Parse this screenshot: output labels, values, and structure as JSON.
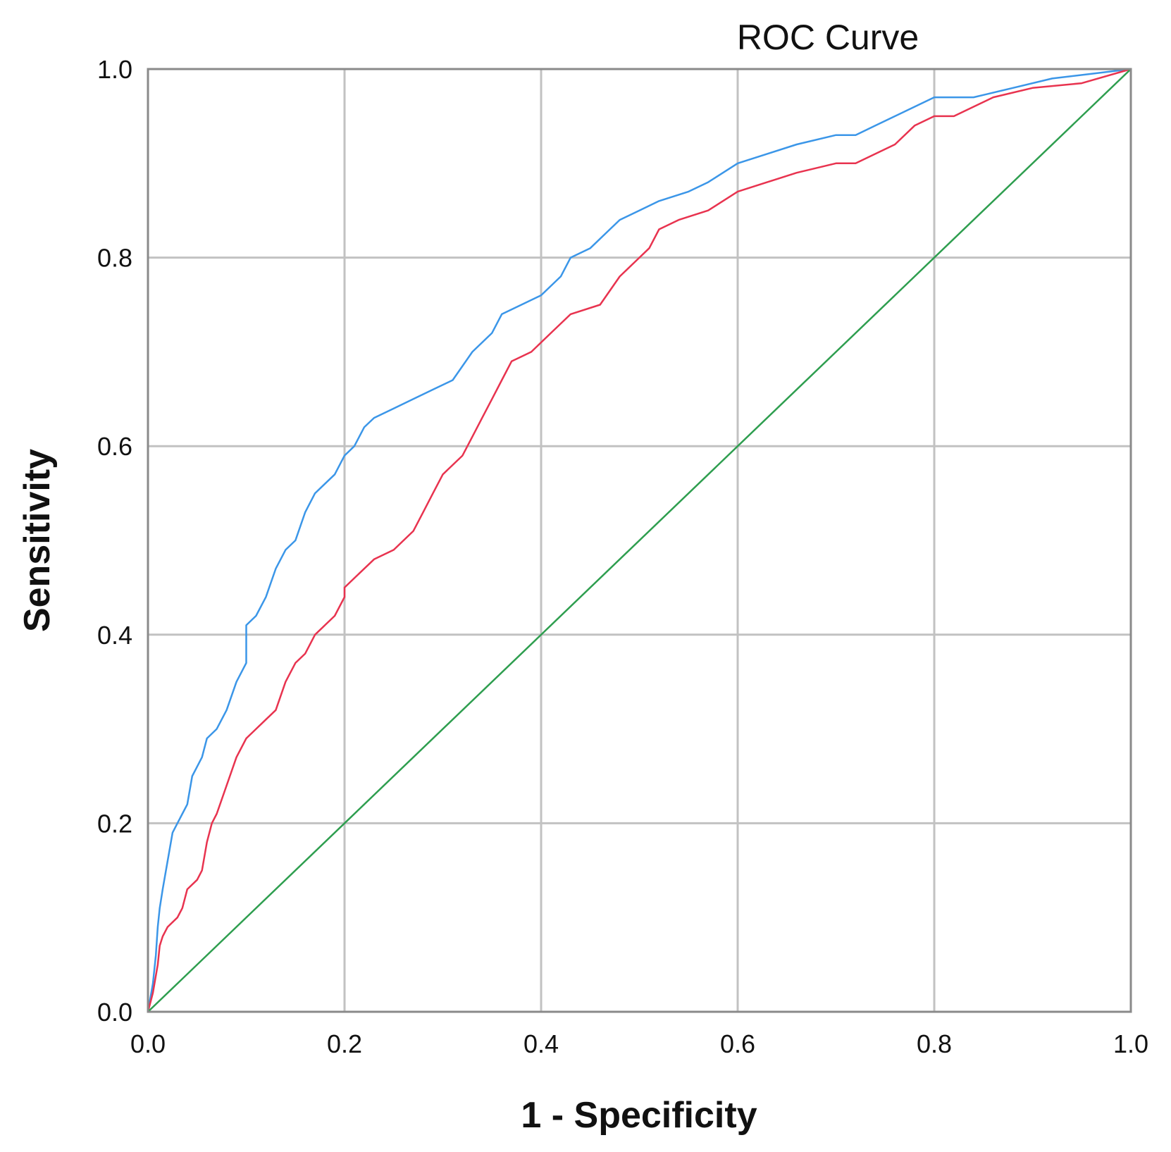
{
  "chart_data": {
    "type": "line",
    "title": "ROC Curve",
    "xlabel": "1 - Specificity",
    "ylabel": "Sensitivity",
    "xlim": [
      0,
      1
    ],
    "ylim": [
      0,
      1
    ],
    "grid": true,
    "x_ticks": [
      "0.0",
      "0.2",
      "0.4",
      "0.6",
      "0.8",
      "1.0"
    ],
    "y_ticks": [
      "0.0",
      "0.2",
      "0.4",
      "0.6",
      "0.8",
      "1.0"
    ],
    "series": [
      {
        "name": "blue-curve",
        "color": "#3b96e8",
        "points": [
          [
            0,
            0
          ],
          [
            0.005,
            0.03
          ],
          [
            0.008,
            0.06
          ],
          [
            0.01,
            0.09
          ],
          [
            0.012,
            0.11
          ],
          [
            0.015,
            0.13
          ],
          [
            0.02,
            0.16
          ],
          [
            0.025,
            0.19
          ],
          [
            0.03,
            0.2
          ],
          [
            0.035,
            0.21
          ],
          [
            0.04,
            0.22
          ],
          [
            0.045,
            0.25
          ],
          [
            0.05,
            0.26
          ],
          [
            0.055,
            0.27
          ],
          [
            0.06,
            0.29
          ],
          [
            0.07,
            0.3
          ],
          [
            0.08,
            0.32
          ],
          [
            0.09,
            0.35
          ],
          [
            0.1,
            0.37
          ],
          [
            0.1,
            0.41
          ],
          [
            0.11,
            0.42
          ],
          [
            0.12,
            0.44
          ],
          [
            0.13,
            0.47
          ],
          [
            0.14,
            0.49
          ],
          [
            0.15,
            0.5
          ],
          [
            0.16,
            0.53
          ],
          [
            0.17,
            0.55
          ],
          [
            0.18,
            0.56
          ],
          [
            0.19,
            0.57
          ],
          [
            0.2,
            0.59
          ],
          [
            0.21,
            0.6
          ],
          [
            0.22,
            0.62
          ],
          [
            0.23,
            0.63
          ],
          [
            0.25,
            0.64
          ],
          [
            0.27,
            0.65
          ],
          [
            0.29,
            0.66
          ],
          [
            0.31,
            0.67
          ],
          [
            0.33,
            0.7
          ],
          [
            0.35,
            0.72
          ],
          [
            0.36,
            0.74
          ],
          [
            0.38,
            0.75
          ],
          [
            0.4,
            0.76
          ],
          [
            0.42,
            0.78
          ],
          [
            0.43,
            0.8
          ],
          [
            0.45,
            0.81
          ],
          [
            0.47,
            0.83
          ],
          [
            0.48,
            0.84
          ],
          [
            0.5,
            0.85
          ],
          [
            0.52,
            0.86
          ],
          [
            0.55,
            0.87
          ],
          [
            0.57,
            0.88
          ],
          [
            0.6,
            0.9
          ],
          [
            0.63,
            0.91
          ],
          [
            0.66,
            0.92
          ],
          [
            0.7,
            0.93
          ],
          [
            0.72,
            0.93
          ],
          [
            0.74,
            0.94
          ],
          [
            0.76,
            0.95
          ],
          [
            0.78,
            0.96
          ],
          [
            0.8,
            0.97
          ],
          [
            0.84,
            0.97
          ],
          [
            0.88,
            0.98
          ],
          [
            0.92,
            0.99
          ],
          [
            0.96,
            0.995
          ],
          [
            1,
            1
          ]
        ]
      },
      {
        "name": "red-curve",
        "color": "#e8334f",
        "points": [
          [
            0,
            0
          ],
          [
            0.005,
            0.02
          ],
          [
            0.01,
            0.05
          ],
          [
            0.012,
            0.07
          ],
          [
            0.015,
            0.08
          ],
          [
            0.02,
            0.09
          ],
          [
            0.03,
            0.1
          ],
          [
            0.035,
            0.11
          ],
          [
            0.04,
            0.13
          ],
          [
            0.05,
            0.14
          ],
          [
            0.055,
            0.15
          ],
          [
            0.06,
            0.18
          ],
          [
            0.065,
            0.2
          ],
          [
            0.07,
            0.21
          ],
          [
            0.08,
            0.24
          ],
          [
            0.09,
            0.27
          ],
          [
            0.1,
            0.29
          ],
          [
            0.11,
            0.3
          ],
          [
            0.12,
            0.31
          ],
          [
            0.13,
            0.32
          ],
          [
            0.14,
            0.35
          ],
          [
            0.15,
            0.37
          ],
          [
            0.16,
            0.38
          ],
          [
            0.17,
            0.4
          ],
          [
            0.18,
            0.41
          ],
          [
            0.19,
            0.42
          ],
          [
            0.2,
            0.44
          ],
          [
            0.2,
            0.45
          ],
          [
            0.21,
            0.46
          ],
          [
            0.23,
            0.48
          ],
          [
            0.25,
            0.49
          ],
          [
            0.27,
            0.51
          ],
          [
            0.28,
            0.53
          ],
          [
            0.29,
            0.55
          ],
          [
            0.3,
            0.57
          ],
          [
            0.32,
            0.59
          ],
          [
            0.33,
            0.61
          ],
          [
            0.34,
            0.63
          ],
          [
            0.35,
            0.65
          ],
          [
            0.36,
            0.67
          ],
          [
            0.37,
            0.69
          ],
          [
            0.39,
            0.7
          ],
          [
            0.41,
            0.72
          ],
          [
            0.43,
            0.74
          ],
          [
            0.46,
            0.75
          ],
          [
            0.48,
            0.78
          ],
          [
            0.5,
            0.8
          ],
          [
            0.51,
            0.81
          ],
          [
            0.52,
            0.83
          ],
          [
            0.54,
            0.84
          ],
          [
            0.57,
            0.85
          ],
          [
            0.6,
            0.87
          ],
          [
            0.63,
            0.88
          ],
          [
            0.66,
            0.89
          ],
          [
            0.7,
            0.9
          ],
          [
            0.72,
            0.9
          ],
          [
            0.76,
            0.92
          ],
          [
            0.78,
            0.94
          ],
          [
            0.8,
            0.95
          ],
          [
            0.82,
            0.95
          ],
          [
            0.84,
            0.96
          ],
          [
            0.86,
            0.97
          ],
          [
            0.9,
            0.98
          ],
          [
            0.95,
            0.985
          ],
          [
            1,
            1
          ]
        ]
      },
      {
        "name": "reference-line",
        "color": "#2e9e4f",
        "points": [
          [
            0,
            0
          ],
          [
            1,
            1
          ]
        ]
      }
    ]
  }
}
